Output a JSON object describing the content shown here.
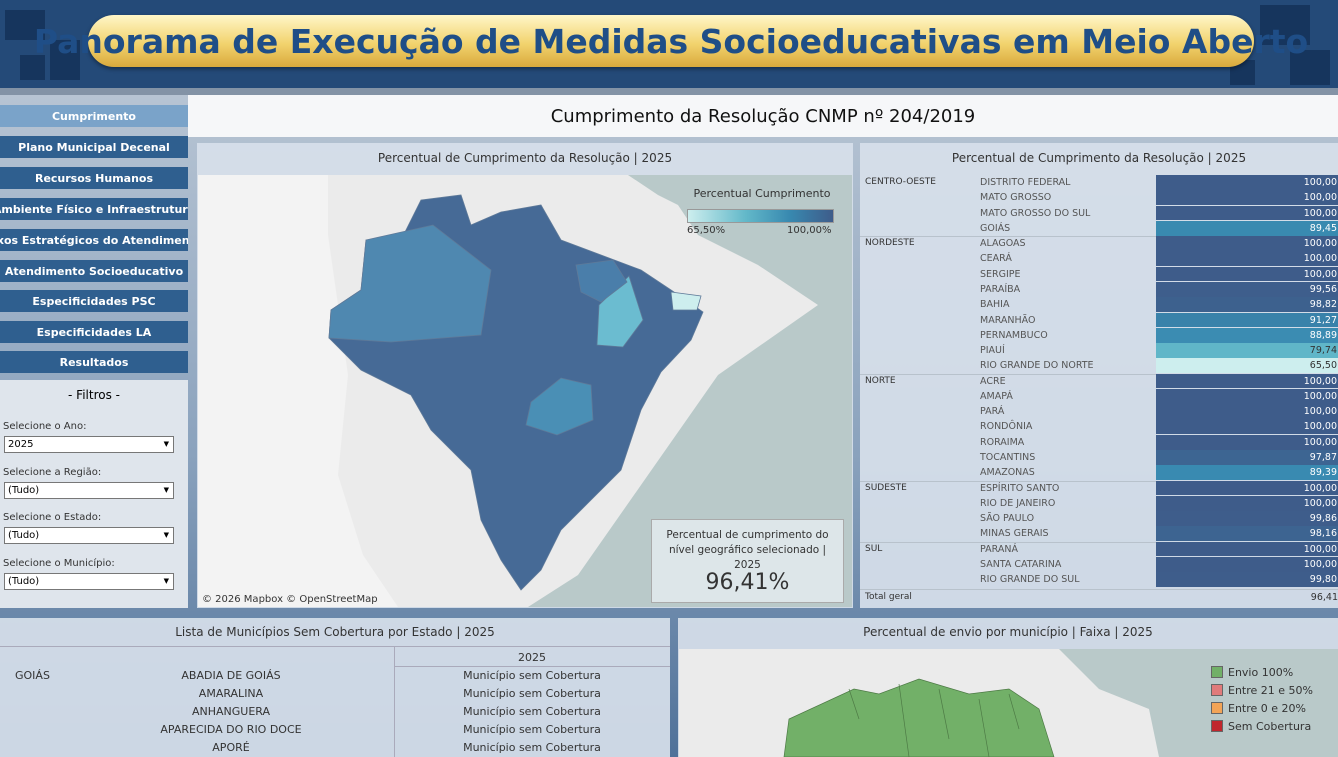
{
  "header": {
    "title": "Panorama de Execução de Medidas Socioeducativas em Meio Aberto"
  },
  "nav": [
    "Cumprimento",
    "Plano Municipal Decenal",
    "Recursos Humanos",
    "Ambiente Físico e Infraestrutura",
    "Eixos Estratégicos do Atendimento",
    "Atendimento Socioeducativo",
    "Especificidades PSC",
    "Especificidades LA",
    "Resultados"
  ],
  "filters": {
    "title": "- Filtros -",
    "items": [
      {
        "label": "Selecione o Ano:",
        "value": "2025"
      },
      {
        "label": "Selecione a Região:",
        "value": "(Tudo)"
      },
      {
        "label": "Selecione o  Estado:",
        "value": "(Tudo)"
      },
      {
        "label": "Selecione o Município:",
        "value": "(Tudo)"
      }
    ]
  },
  "main_title": "Cumprimento da Resolução CNMP nº 204/2019",
  "map": {
    "title": "Percentual de Cumprimento da Resolução | 2025",
    "legend_title": "Percentual Cumprimento",
    "legend_min": "65,50%",
    "legend_max": "100,00%",
    "kpi_label": "Percentual de cumprimento do nível geográfico selecionado | 2025",
    "kpi_value": "96,41%",
    "attribution": "© 2026 Mapbox  © OpenStreetMap"
  },
  "table": {
    "title": "Percentual de Cumprimento da Resolução | 2025",
    "groups": [
      {
        "region": "CENTRO-OESTE",
        "rows": [
          {
            "state": "DISTRITO FEDERAL",
            "value": "100,00"
          },
          {
            "state": "MATO GROSSO",
            "value": "100,00"
          },
          {
            "state": "MATO GROSSO DO SUL",
            "value": "100,00"
          },
          {
            "state": "GOIÁS",
            "value": "89,45"
          }
        ]
      },
      {
        "region": "NORDESTE",
        "rows": [
          {
            "state": "ALAGOAS",
            "value": "100,00"
          },
          {
            "state": "CEARÁ",
            "value": "100,00"
          },
          {
            "state": "SERGIPE",
            "value": "100,00"
          },
          {
            "state": "PARAÍBA",
            "value": "99,56"
          },
          {
            "state": "BAHIA",
            "value": "98,82"
          },
          {
            "state": "MARANHÃO",
            "value": "91,27"
          },
          {
            "state": "PERNAMBUCO",
            "value": "88,89"
          },
          {
            "state": "PIAUÍ",
            "value": "79,74"
          },
          {
            "state": "RIO GRANDE DO NORTE",
            "value": "65,50"
          }
        ]
      },
      {
        "region": "NORTE",
        "rows": [
          {
            "state": "ACRE",
            "value": "100,00"
          },
          {
            "state": "AMAPÁ",
            "value": "100,00"
          },
          {
            "state": "PARÁ",
            "value": "100,00"
          },
          {
            "state": "RONDÔNIA",
            "value": "100,00"
          },
          {
            "state": "RORAIMA",
            "value": "100,00"
          },
          {
            "state": "TOCANTINS",
            "value": "97,87"
          },
          {
            "state": "AMAZONAS",
            "value": "89,39"
          }
        ]
      },
      {
        "region": "SUDESTE",
        "rows": [
          {
            "state": "ESPÍRITO SANTO",
            "value": "100,00"
          },
          {
            "state": "RIO DE JANEIRO",
            "value": "100,00"
          },
          {
            "state": "SÃO PAULO",
            "value": "99,86"
          },
          {
            "state": "MINAS GERAIS",
            "value": "98,16"
          }
        ]
      },
      {
        "region": "SUL",
        "rows": [
          {
            "state": "PARANÁ",
            "value": "100,00"
          },
          {
            "state": "SANTA CATARINA",
            "value": "100,00"
          },
          {
            "state": "RIO GRANDE DO SUL",
            "value": "99,80"
          }
        ]
      }
    ],
    "total_label": "Total geral",
    "total_value": "96,41"
  },
  "list": {
    "title": "Lista de Municípios Sem Cobertura por Estado |  2025",
    "year_header": "2025",
    "state": "GOIÁS",
    "rows": [
      {
        "municipality": "ABADIA DE GOIÁS",
        "status": "Município sem Cobertura"
      },
      {
        "municipality": "AMARALINA",
        "status": "Município sem Cobertura"
      },
      {
        "municipality": "ANHANGUERA",
        "status": "Município sem Cobertura"
      },
      {
        "municipality": "APARECIDA DO RIO DOCE",
        "status": "Município sem Cobertura"
      },
      {
        "municipality": "APORÉ",
        "status": "Município sem Cobertura"
      }
    ]
  },
  "map2": {
    "title": "Percentual de envio por município | Faixa | 2025",
    "legend": [
      {
        "label": "Envio 100%",
        "color": "#72b068"
      },
      {
        "label": "Entre 21 e 50%",
        "color": "#e07a7a"
      },
      {
        "label": "Entre 0 e 20%",
        "color": "#f2a457"
      },
      {
        "label": "Sem Cobertura",
        "color": "#c0262d"
      }
    ]
  }
}
